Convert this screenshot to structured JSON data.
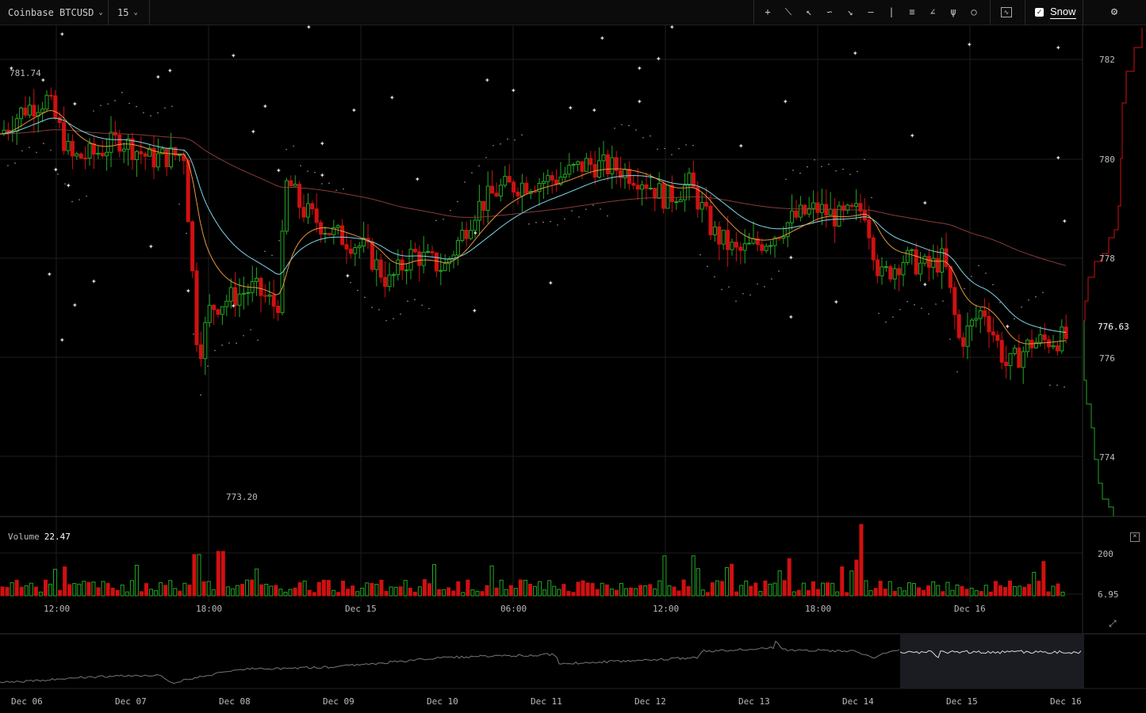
{
  "toolbar": {
    "market": "Coinbase BTCUSD",
    "interval": "15",
    "tools": [
      "crosshair-icon",
      "line-icon",
      "ray-icon",
      "curve-icon",
      "arrow-icon",
      "horizontal-line-icon",
      "vertical-line-icon",
      "fib-icon",
      "fan-icon",
      "pitchfork-icon",
      "circle-icon"
    ],
    "snow_label": "Snow"
  },
  "main_chart": {
    "price_labels": [
      "782",
      "780",
      "778",
      "776",
      "774"
    ],
    "current_price": "776.63",
    "high_label": "781.74",
    "low_label": "773.20",
    "time_labels": [
      "12:00",
      "18:00",
      "Dec 15",
      "06:00",
      "12:00",
      "18:00",
      "Dec 16"
    ]
  },
  "volume": {
    "label": "Volume",
    "value": "22.47",
    "axis_labels": [
      "200",
      "6.95"
    ]
  },
  "navigator": {
    "date_labels": [
      "Dec 06",
      "Dec 07",
      "Dec 08",
      "Dec 09",
      "Dec 10",
      "Dec 11",
      "Dec 12",
      "Dec 13",
      "Dec 14",
      "Dec 15",
      "Dec 16"
    ]
  },
  "colors": {
    "up": "#22a822",
    "down": "#d01010",
    "ema_fast": "#e8963c",
    "ema_mid": "#7fd6e6",
    "sma_slow": "#a04a4a",
    "sar": "#cccccc"
  }
}
